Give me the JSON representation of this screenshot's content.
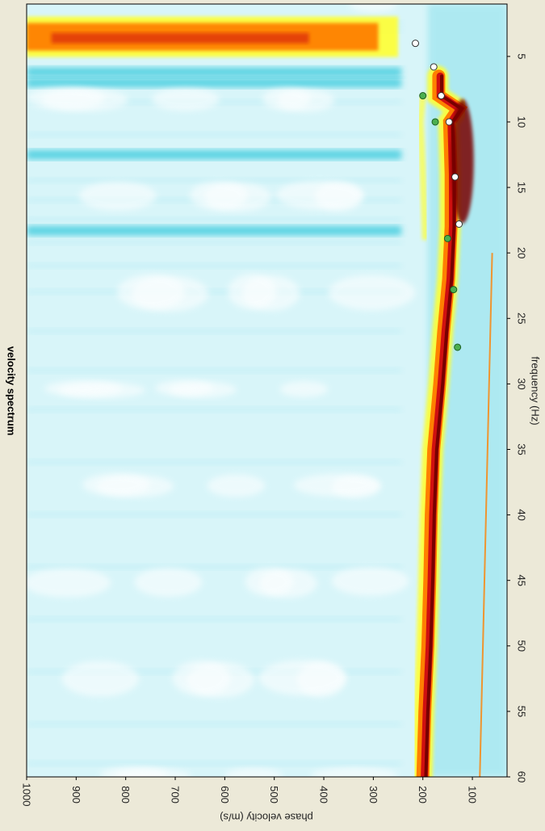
{
  "chart_data": {
    "type": "heatmap",
    "title": "velocity spectrum",
    "xlabel": "frequency (Hz)",
    "ylabel": "phase velocity (m/s)",
    "xlim": [
      1,
      60
    ],
    "ylim": [
      30,
      1000
    ],
    "x_ticks": [
      5,
      10,
      15,
      20,
      25,
      30,
      35,
      40,
      45,
      50,
      55,
      60
    ],
    "y_ticks": [
      100,
      200,
      300,
      400,
      500,
      600,
      700,
      800,
      900,
      1000
    ],
    "orientation": "rotated 90° clockwise",
    "colormap": [
      "#ffffff",
      "#b8ecf4",
      "#30c8dc",
      "#ffff30",
      "#ff8000",
      "#d01010",
      "#780000"
    ],
    "ridge": [
      {
        "x": 3.5,
        "y": 430
      },
      {
        "x": 6.5,
        "y": 150
      },
      {
        "x": 8,
        "y": 150
      },
      {
        "x": 9,
        "y": 110
      },
      {
        "x": 10,
        "y": 128
      },
      {
        "x": 14,
        "y": 125
      },
      {
        "x": 18,
        "y": 125
      },
      {
        "x": 22,
        "y": 130
      },
      {
        "x": 26,
        "y": 140
      },
      {
        "x": 30,
        "y": 148
      },
      {
        "x": 35,
        "y": 160
      },
      {
        "x": 40,
        "y": 165
      },
      {
        "x": 45,
        "y": 168
      },
      {
        "x": 50,
        "y": 172
      },
      {
        "x": 55,
        "y": 178
      },
      {
        "x": 60,
        "y": 182
      }
    ],
    "picks_white": [
      {
        "x": 4,
        "y": 215
      },
      {
        "x": 5.8,
        "y": 178
      },
      {
        "x": 8,
        "y": 163
      },
      {
        "x": 10,
        "y": 147
      },
      {
        "x": 14.2,
        "y": 135
      },
      {
        "x": 17.8,
        "y": 127
      }
    ],
    "picks_green": [
      {
        "x": 8,
        "y": 200
      },
      {
        "x": 10,
        "y": 175
      },
      {
        "x": 18.9,
        "y": 150
      },
      {
        "x": 22.8,
        "y": 138
      },
      {
        "x": 27.2,
        "y": 130
      }
    ]
  }
}
